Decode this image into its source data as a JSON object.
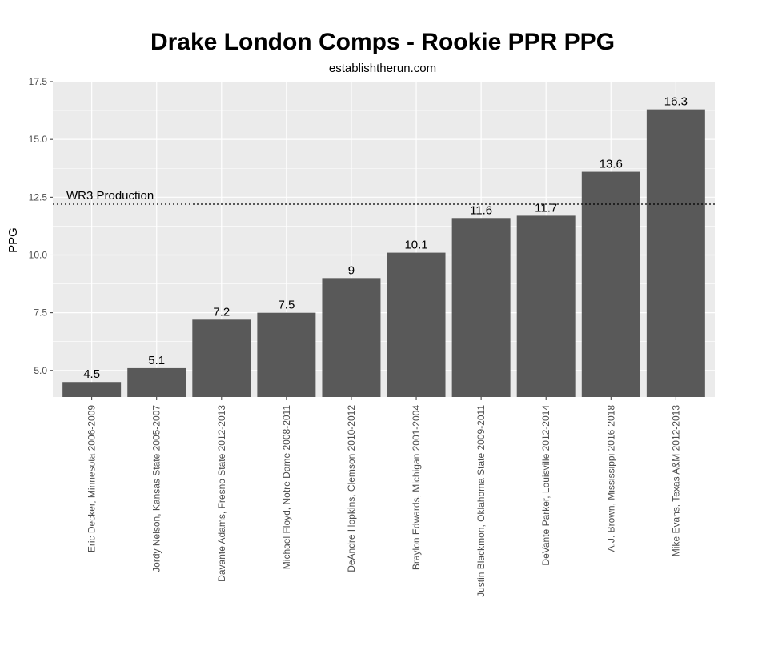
{
  "chart_data": {
    "type": "bar",
    "title": "Drake London Comps - Rookie PPR PPG",
    "subtitle": "establishtherun.com",
    "xlabel": "",
    "ylabel": "PPG",
    "categories": [
      "Eric Decker, Minnesota 2006-2009",
      "Jordy Nelson, Kansas State 2005-2007",
      "Davante Adams, Fresno State 2012-2013",
      "Michael Floyd, Notre Dame 2008-2011",
      "DeAndre Hopkins, Clemson 2010-2012",
      "Braylon Edwards, Michigan 2001-2004",
      "Justin Blackmon, Oklahoma State 2009-2011",
      "DeVante Parker, Louisville 2012-2014",
      "A.J. Brown, Mississippi 2016-2018",
      "Mike Evans, Texas A&M 2012-2013"
    ],
    "values": [
      4.5,
      5.1,
      7.2,
      7.5,
      9,
      10.1,
      11.6,
      11.7,
      13.6,
      16.3
    ],
    "data_labels": [
      "4.5",
      "5.1",
      "7.2",
      "7.5",
      "9",
      "10.1",
      "11.6",
      "11.7",
      "13.6",
      "16.3"
    ],
    "yticks": [
      5.0,
      7.5,
      10.0,
      12.5,
      15.0,
      17.5
    ],
    "ytick_labels": [
      "5.0",
      "7.5",
      "10.0",
      "12.5",
      "15.0",
      "17.5"
    ],
    "ylim": [
      3.85,
      17.5
    ],
    "bar_color": "#595959",
    "panel_color": "#ebebeb",
    "grid": true,
    "reference_line": {
      "value": 12.2,
      "label": "WR3 Production",
      "style": "dotted"
    }
  }
}
